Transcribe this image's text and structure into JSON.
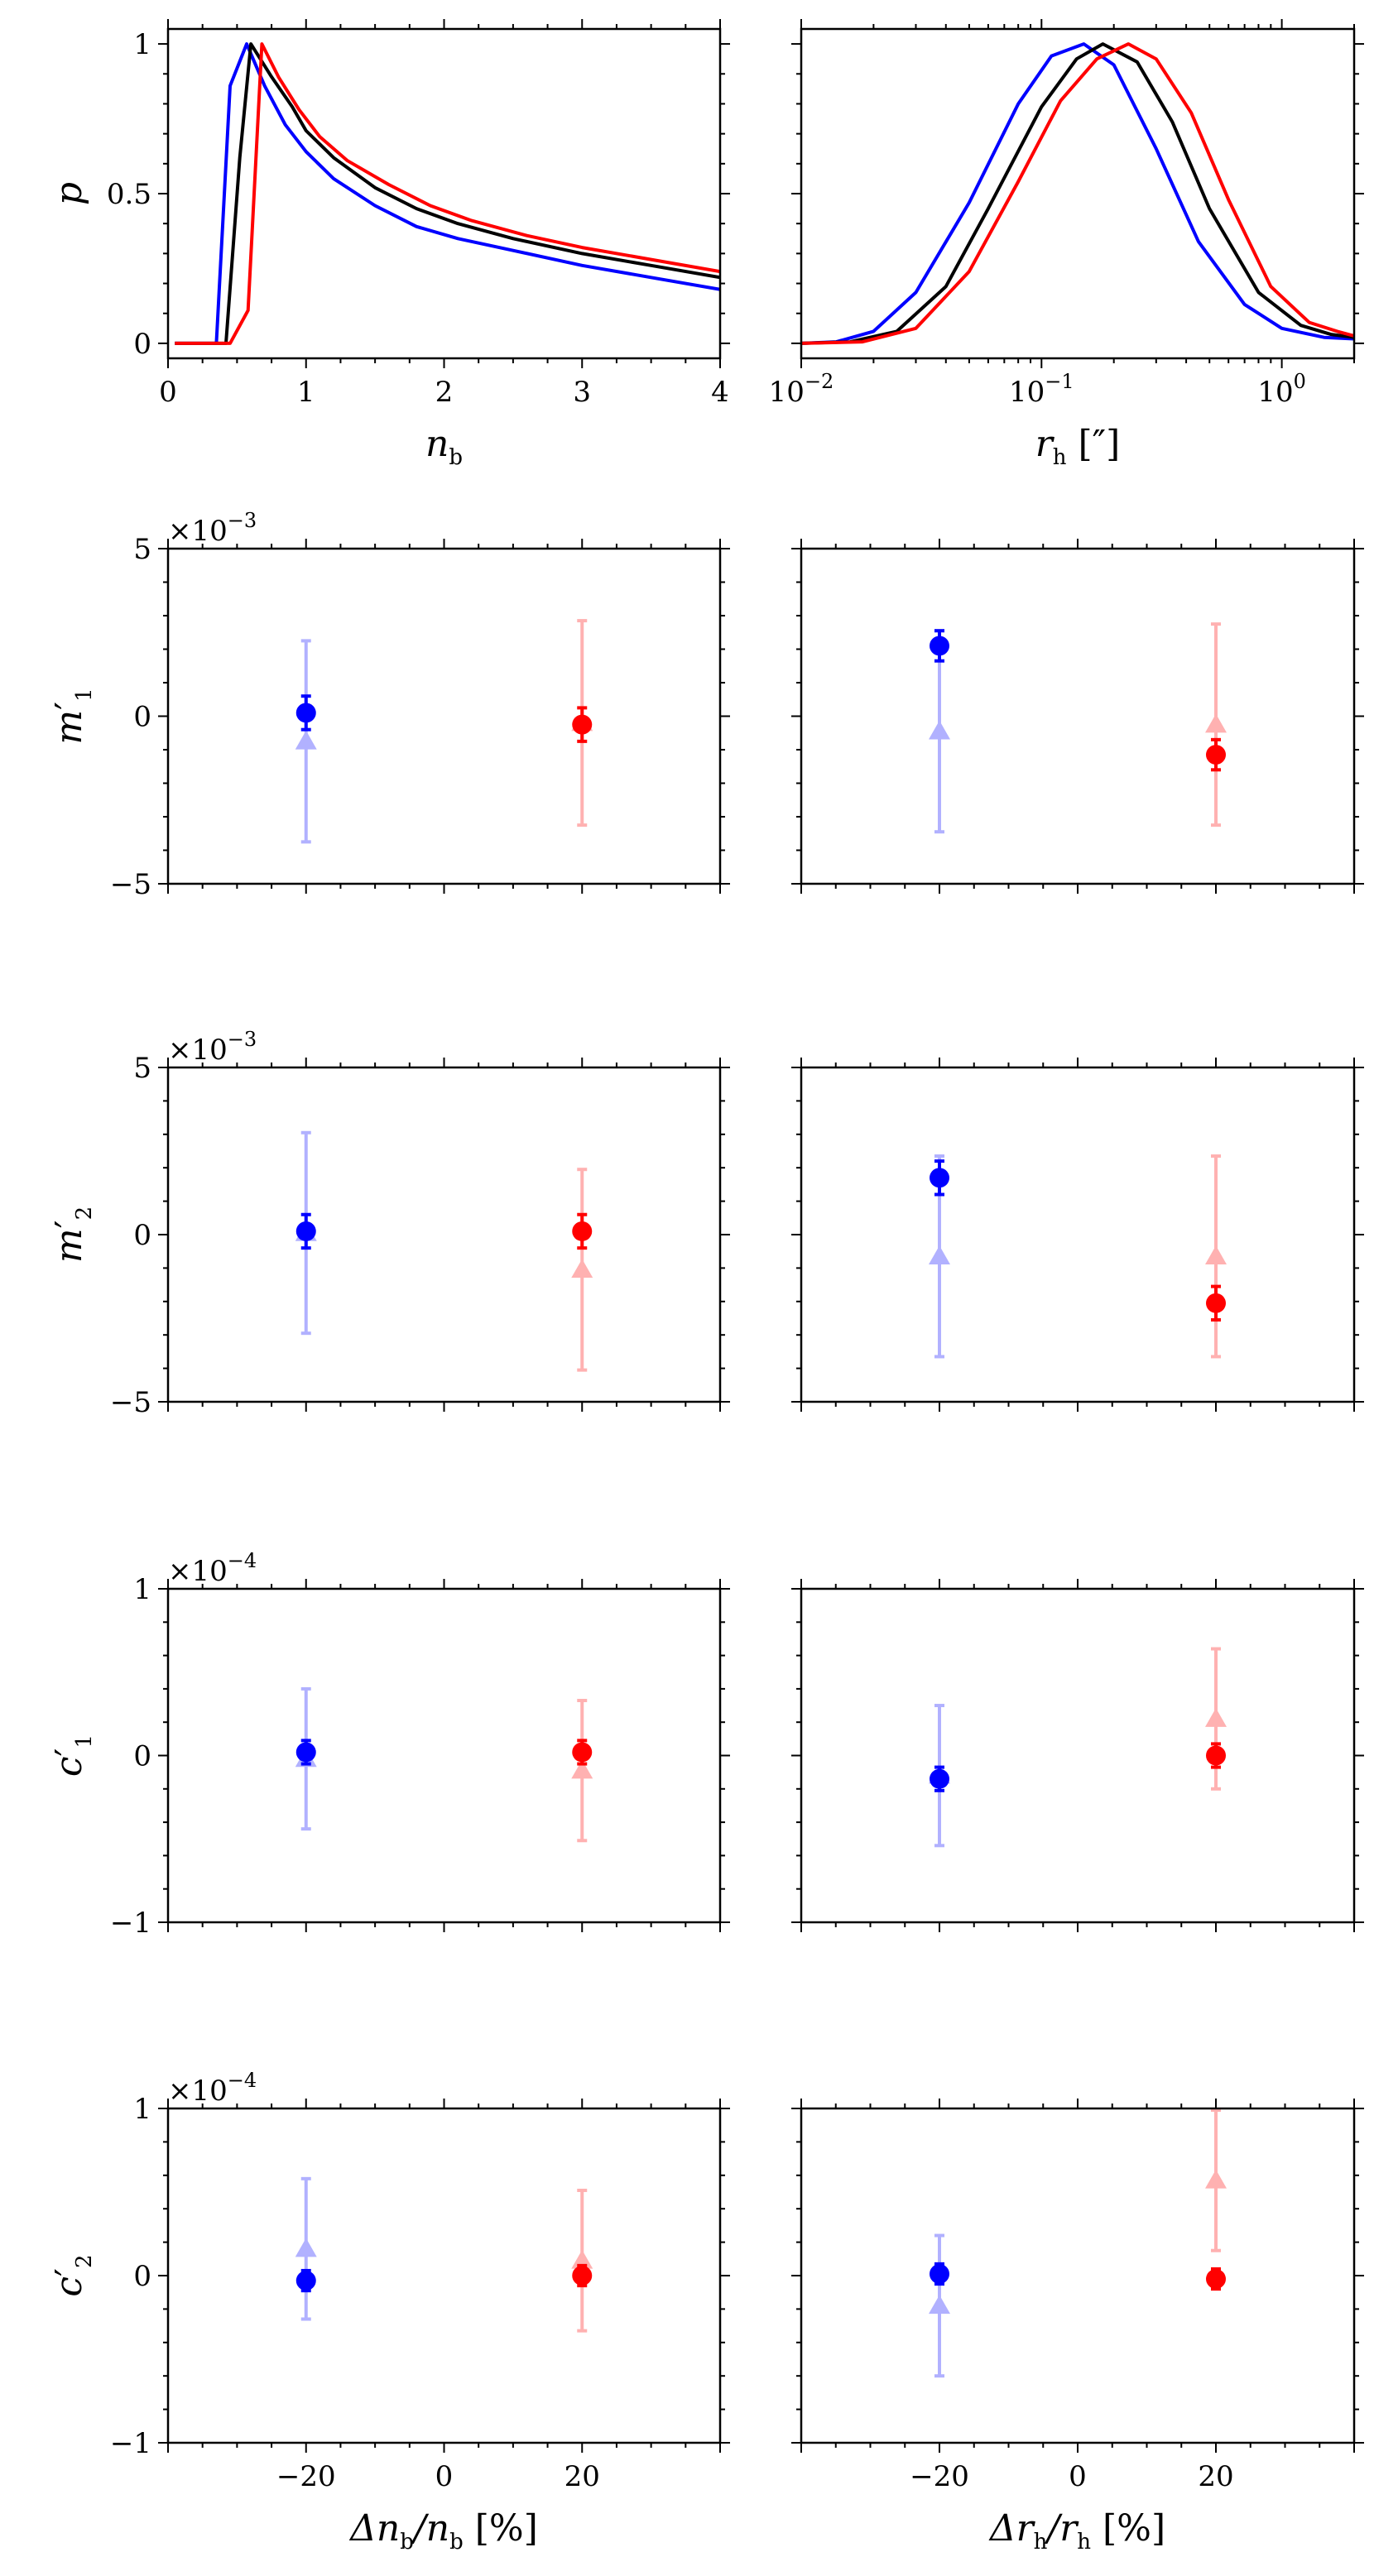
{
  "chart_data": [
    {
      "id": "nb-dist",
      "type": "line",
      "ylabel": "p",
      "xlabel": "n",
      "xlabel_sub": "b",
      "xlim": [
        0,
        4
      ],
      "ylim": [
        -0.05,
        1.05
      ],
      "xticks": [
        0,
        1,
        2,
        3,
        4
      ],
      "xtick_labels": [
        "0",
        "1",
        "2",
        "3",
        "4"
      ],
      "yticks": [
        0,
        0.5,
        1
      ],
      "ytick_labels": [
        "0",
        "0.5",
        "1"
      ],
      "series": [
        {
          "color": "#0000ff",
          "x": [
            0.05,
            0.3,
            0.35,
            0.45,
            0.57,
            0.7,
            0.85,
            1.0,
            1.2,
            1.5,
            1.8,
            2.1,
            2.5,
            3.0,
            3.5,
            4.0
          ],
          "y": [
            0,
            0,
            0,
            0.86,
            1.0,
            0.86,
            0.73,
            0.64,
            0.55,
            0.46,
            0.39,
            0.35,
            0.31,
            0.26,
            0.22,
            0.18
          ]
        },
        {
          "color": "#000000",
          "x": [
            0.05,
            0.35,
            0.42,
            0.52,
            0.6,
            0.75,
            0.9,
            1.0,
            1.2,
            1.5,
            1.8,
            2.1,
            2.5,
            3.0,
            3.5,
            4.0
          ],
          "y": [
            0,
            0,
            0,
            0.62,
            1.0,
            0.89,
            0.79,
            0.71,
            0.62,
            0.52,
            0.45,
            0.4,
            0.35,
            0.3,
            0.26,
            0.22
          ]
        },
        {
          "color": "#ff0000",
          "x": [
            0.05,
            0.4,
            0.45,
            0.58,
            0.68,
            0.8,
            0.95,
            1.1,
            1.3,
            1.6,
            1.9,
            2.2,
            2.6,
            3.0,
            3.5,
            4.0
          ],
          "y": [
            0,
            0,
            0,
            0.11,
            1.0,
            0.89,
            0.78,
            0.69,
            0.61,
            0.53,
            0.46,
            0.41,
            0.36,
            0.32,
            0.28,
            0.24
          ]
        }
      ]
    },
    {
      "id": "rh-dist",
      "type": "line",
      "xscale": "log",
      "xlabel": "r",
      "xlabel_sub": "h",
      "xlabel_unit": "[″]",
      "xlim": [
        0.01,
        2
      ],
      "ylim": [
        -0.05,
        1.05
      ],
      "xticks": [
        0.01,
        0.1,
        1
      ],
      "xtick_labels": [
        "10",
        "10",
        "10"
      ],
      "xtick_exponents": [
        "−2",
        "−1",
        "0"
      ],
      "series": [
        {
          "color": "#0000ff",
          "x": [
            0.01,
            0.014,
            0.02,
            0.03,
            0.05,
            0.08,
            0.11,
            0.15,
            0.2,
            0.3,
            0.45,
            0.7,
            1.0,
            1.5,
            2.0
          ],
          "y": [
            0,
            0.005,
            0.04,
            0.17,
            0.47,
            0.8,
            0.96,
            1.0,
            0.93,
            0.65,
            0.34,
            0.13,
            0.05,
            0.02,
            0.015
          ]
        },
        {
          "color": "#000000",
          "x": [
            0.01,
            0.016,
            0.025,
            0.04,
            0.06,
            0.1,
            0.14,
            0.18,
            0.25,
            0.35,
            0.5,
            0.8,
            1.2,
            1.6,
            2.0
          ],
          "y": [
            0,
            0.005,
            0.04,
            0.19,
            0.45,
            0.79,
            0.95,
            1.0,
            0.94,
            0.74,
            0.45,
            0.17,
            0.06,
            0.03,
            0.02
          ]
        },
        {
          "color": "#ff0000",
          "x": [
            0.01,
            0.018,
            0.03,
            0.05,
            0.08,
            0.12,
            0.17,
            0.23,
            0.3,
            0.42,
            0.6,
            0.9,
            1.3,
            1.7,
            2.0
          ],
          "y": [
            0,
            0.005,
            0.05,
            0.24,
            0.54,
            0.81,
            0.95,
            1.0,
            0.95,
            0.77,
            0.48,
            0.19,
            0.07,
            0.04,
            0.025
          ]
        }
      ]
    },
    {
      "id": "m1-nb",
      "type": "scatter",
      "ylabel": "m",
      "ylabel_sub": "1",
      "offset_base": "×10",
      "offset_exp": "−3",
      "ylim": [
        -5,
        5
      ],
      "yticks": [
        -5,
        0,
        5
      ],
      "ytick_labels": [
        "−5",
        "0",
        "5"
      ],
      "xlim": [
        -40,
        40
      ],
      "points": [
        {
          "x": -20,
          "y": 0.1,
          "err": 0.5,
          "marker": "circle",
          "color": "#0000ff",
          "alpha": 1
        },
        {
          "x": -20,
          "y": -0.75,
          "err": 3.0,
          "marker": "triangle",
          "color": "#0000ff",
          "alpha": 0.3
        },
        {
          "x": 20,
          "y": -0.25,
          "err": 0.5,
          "marker": "circle",
          "color": "#ff0000",
          "alpha": 1
        },
        {
          "x": 20,
          "y": -0.2,
          "err": 3.05,
          "marker": "triangle",
          "color": "#ff0000",
          "alpha": 0.3
        }
      ]
    },
    {
      "id": "m1-rh",
      "type": "scatter",
      "ylim": [
        -5,
        5
      ],
      "xlim": [
        -40,
        40
      ],
      "points": [
        {
          "x": -20,
          "y": 2.1,
          "err": 0.45,
          "marker": "circle",
          "color": "#0000ff",
          "alpha": 1
        },
        {
          "x": -20,
          "y": -0.45,
          "err": 3.0,
          "marker": "triangle",
          "color": "#0000ff",
          "alpha": 0.3
        },
        {
          "x": 20,
          "y": -1.15,
          "err": 0.45,
          "marker": "circle",
          "color": "#ff0000",
          "alpha": 1
        },
        {
          "x": 20,
          "y": -0.25,
          "err": 3.0,
          "marker": "triangle",
          "color": "#ff0000",
          "alpha": 0.3
        }
      ]
    },
    {
      "id": "m2-nb",
      "type": "scatter",
      "ylabel": "m",
      "ylabel_sub": "2",
      "offset_base": "×10",
      "offset_exp": "−3",
      "ylim": [
        -5,
        5
      ],
      "yticks": [
        -5,
        0,
        5
      ],
      "ytick_labels": [
        "−5",
        "0",
        "5"
      ],
      "xlim": [
        -40,
        40
      ],
      "points": [
        {
          "x": -20,
          "y": 0.1,
          "err": 0.5,
          "marker": "circle",
          "color": "#0000ff",
          "alpha": 1
        },
        {
          "x": -20,
          "y": 0.05,
          "err": 3.0,
          "marker": "triangle",
          "color": "#0000ff",
          "alpha": 0.3
        },
        {
          "x": 20,
          "y": 0.1,
          "err": 0.5,
          "marker": "circle",
          "color": "#ff0000",
          "alpha": 1
        },
        {
          "x": 20,
          "y": -1.05,
          "err": 3.0,
          "marker": "triangle",
          "color": "#ff0000",
          "alpha": 0.3
        }
      ]
    },
    {
      "id": "m2-rh",
      "type": "scatter",
      "ylim": [
        -5,
        5
      ],
      "xlim": [
        -40,
        40
      ],
      "points": [
        {
          "x": -20,
          "y": 1.7,
          "err": 0.5,
          "marker": "circle",
          "color": "#0000ff",
          "alpha": 1
        },
        {
          "x": -20,
          "y": -0.65,
          "err": 3.0,
          "marker": "triangle",
          "color": "#0000ff",
          "alpha": 0.3
        },
        {
          "x": 20,
          "y": -2.05,
          "err": 0.5,
          "marker": "circle",
          "color": "#ff0000",
          "alpha": 1
        },
        {
          "x": 20,
          "y": -0.65,
          "err": 3.0,
          "marker": "triangle",
          "color": "#ff0000",
          "alpha": 0.3
        }
      ]
    },
    {
      "id": "c1-nb",
      "type": "scatter",
      "ylabel": "c",
      "ylabel_sub": "1",
      "offset_base": "×10",
      "offset_exp": "−4",
      "ylim": [
        -1,
        1
      ],
      "yticks": [
        -1,
        0,
        1
      ],
      "ytick_labels": [
        "−1",
        "0",
        "1"
      ],
      "xlim": [
        -40,
        40
      ],
      "points": [
        {
          "x": -20,
          "y": 0.02,
          "err": 0.07,
          "marker": "circle",
          "color": "#0000ff",
          "alpha": 1
        },
        {
          "x": -20,
          "y": -0.02,
          "err": 0.42,
          "marker": "triangle",
          "color": "#0000ff",
          "alpha": 0.3
        },
        {
          "x": 20,
          "y": 0.02,
          "err": 0.07,
          "marker": "circle",
          "color": "#ff0000",
          "alpha": 1
        },
        {
          "x": 20,
          "y": -0.09,
          "err": 0.42,
          "marker": "triangle",
          "color": "#ff0000",
          "alpha": 0.3
        }
      ]
    },
    {
      "id": "c1-rh",
      "type": "scatter",
      "ylim": [
        -1,
        1
      ],
      "xlim": [
        -40,
        40
      ],
      "points": [
        {
          "x": -20,
          "y": -0.14,
          "err": 0.07,
          "marker": "circle",
          "color": "#0000ff",
          "alpha": 1
        },
        {
          "x": -20,
          "y": -0.12,
          "err": 0.42,
          "marker": "triangle",
          "color": "#0000ff",
          "alpha": 0.3
        },
        {
          "x": 20,
          "y": 0.0,
          "err": 0.07,
          "marker": "circle",
          "color": "#ff0000",
          "alpha": 1
        },
        {
          "x": 20,
          "y": 0.22,
          "err": 0.42,
          "marker": "triangle",
          "color": "#ff0000",
          "alpha": 0.3
        }
      ]
    },
    {
      "id": "c2-nb",
      "type": "scatter",
      "ylabel": "c",
      "ylabel_sub": "2",
      "offset_base": "×10",
      "offset_exp": "−4",
      "ylim": [
        -1,
        1
      ],
      "yticks": [
        -1,
        0,
        1
      ],
      "ytick_labels": [
        "−1",
        "0",
        "1"
      ],
      "xlim": [
        -40,
        40
      ],
      "xticks": [
        -20,
        0,
        20
      ],
      "xtick_labels": [
        "−20",
        "0",
        "20"
      ],
      "xlabel": "Δn",
      "xlabel_sub": "b",
      "xlabel_mid": "/n",
      "xlabel_sub2": "b",
      "xlabel_unit": "[%]",
      "points": [
        {
          "x": -20,
          "y": -0.03,
          "err": 0.06,
          "marker": "circle",
          "color": "#0000ff",
          "alpha": 1
        },
        {
          "x": -20,
          "y": 0.16,
          "err": 0.42,
          "marker": "triangle",
          "color": "#0000ff",
          "alpha": 0.3
        },
        {
          "x": 20,
          "y": 0.0,
          "err": 0.06,
          "marker": "circle",
          "color": "#ff0000",
          "alpha": 1
        },
        {
          "x": 20,
          "y": 0.09,
          "err": 0.42,
          "marker": "triangle",
          "color": "#ff0000",
          "alpha": 0.3
        }
      ]
    },
    {
      "id": "c2-rh",
      "type": "scatter",
      "ylim": [
        -1,
        1
      ],
      "xlim": [
        -40,
        40
      ],
      "xticks": [
        -20,
        0,
        20
      ],
      "xtick_labels": [
        "−20",
        "0",
        "20"
      ],
      "xlabel": "Δr",
      "xlabel_sub": "h",
      "xlabel_mid": "/r",
      "xlabel_sub2": "h",
      "xlabel_unit": "[%]",
      "points": [
        {
          "x": -20,
          "y": 0.01,
          "err": 0.06,
          "marker": "circle",
          "color": "#0000ff",
          "alpha": 1
        },
        {
          "x": -20,
          "y": -0.18,
          "err": 0.42,
          "marker": "triangle",
          "color": "#0000ff",
          "alpha": 0.3
        },
        {
          "x": 20,
          "y": -0.02,
          "err": 0.06,
          "marker": "circle",
          "color": "#ff0000",
          "alpha": 1
        },
        {
          "x": 20,
          "y": 0.57,
          "err": 0.42,
          "marker": "triangle",
          "color": "#ff0000",
          "alpha": 0.3
        }
      ]
    }
  ]
}
